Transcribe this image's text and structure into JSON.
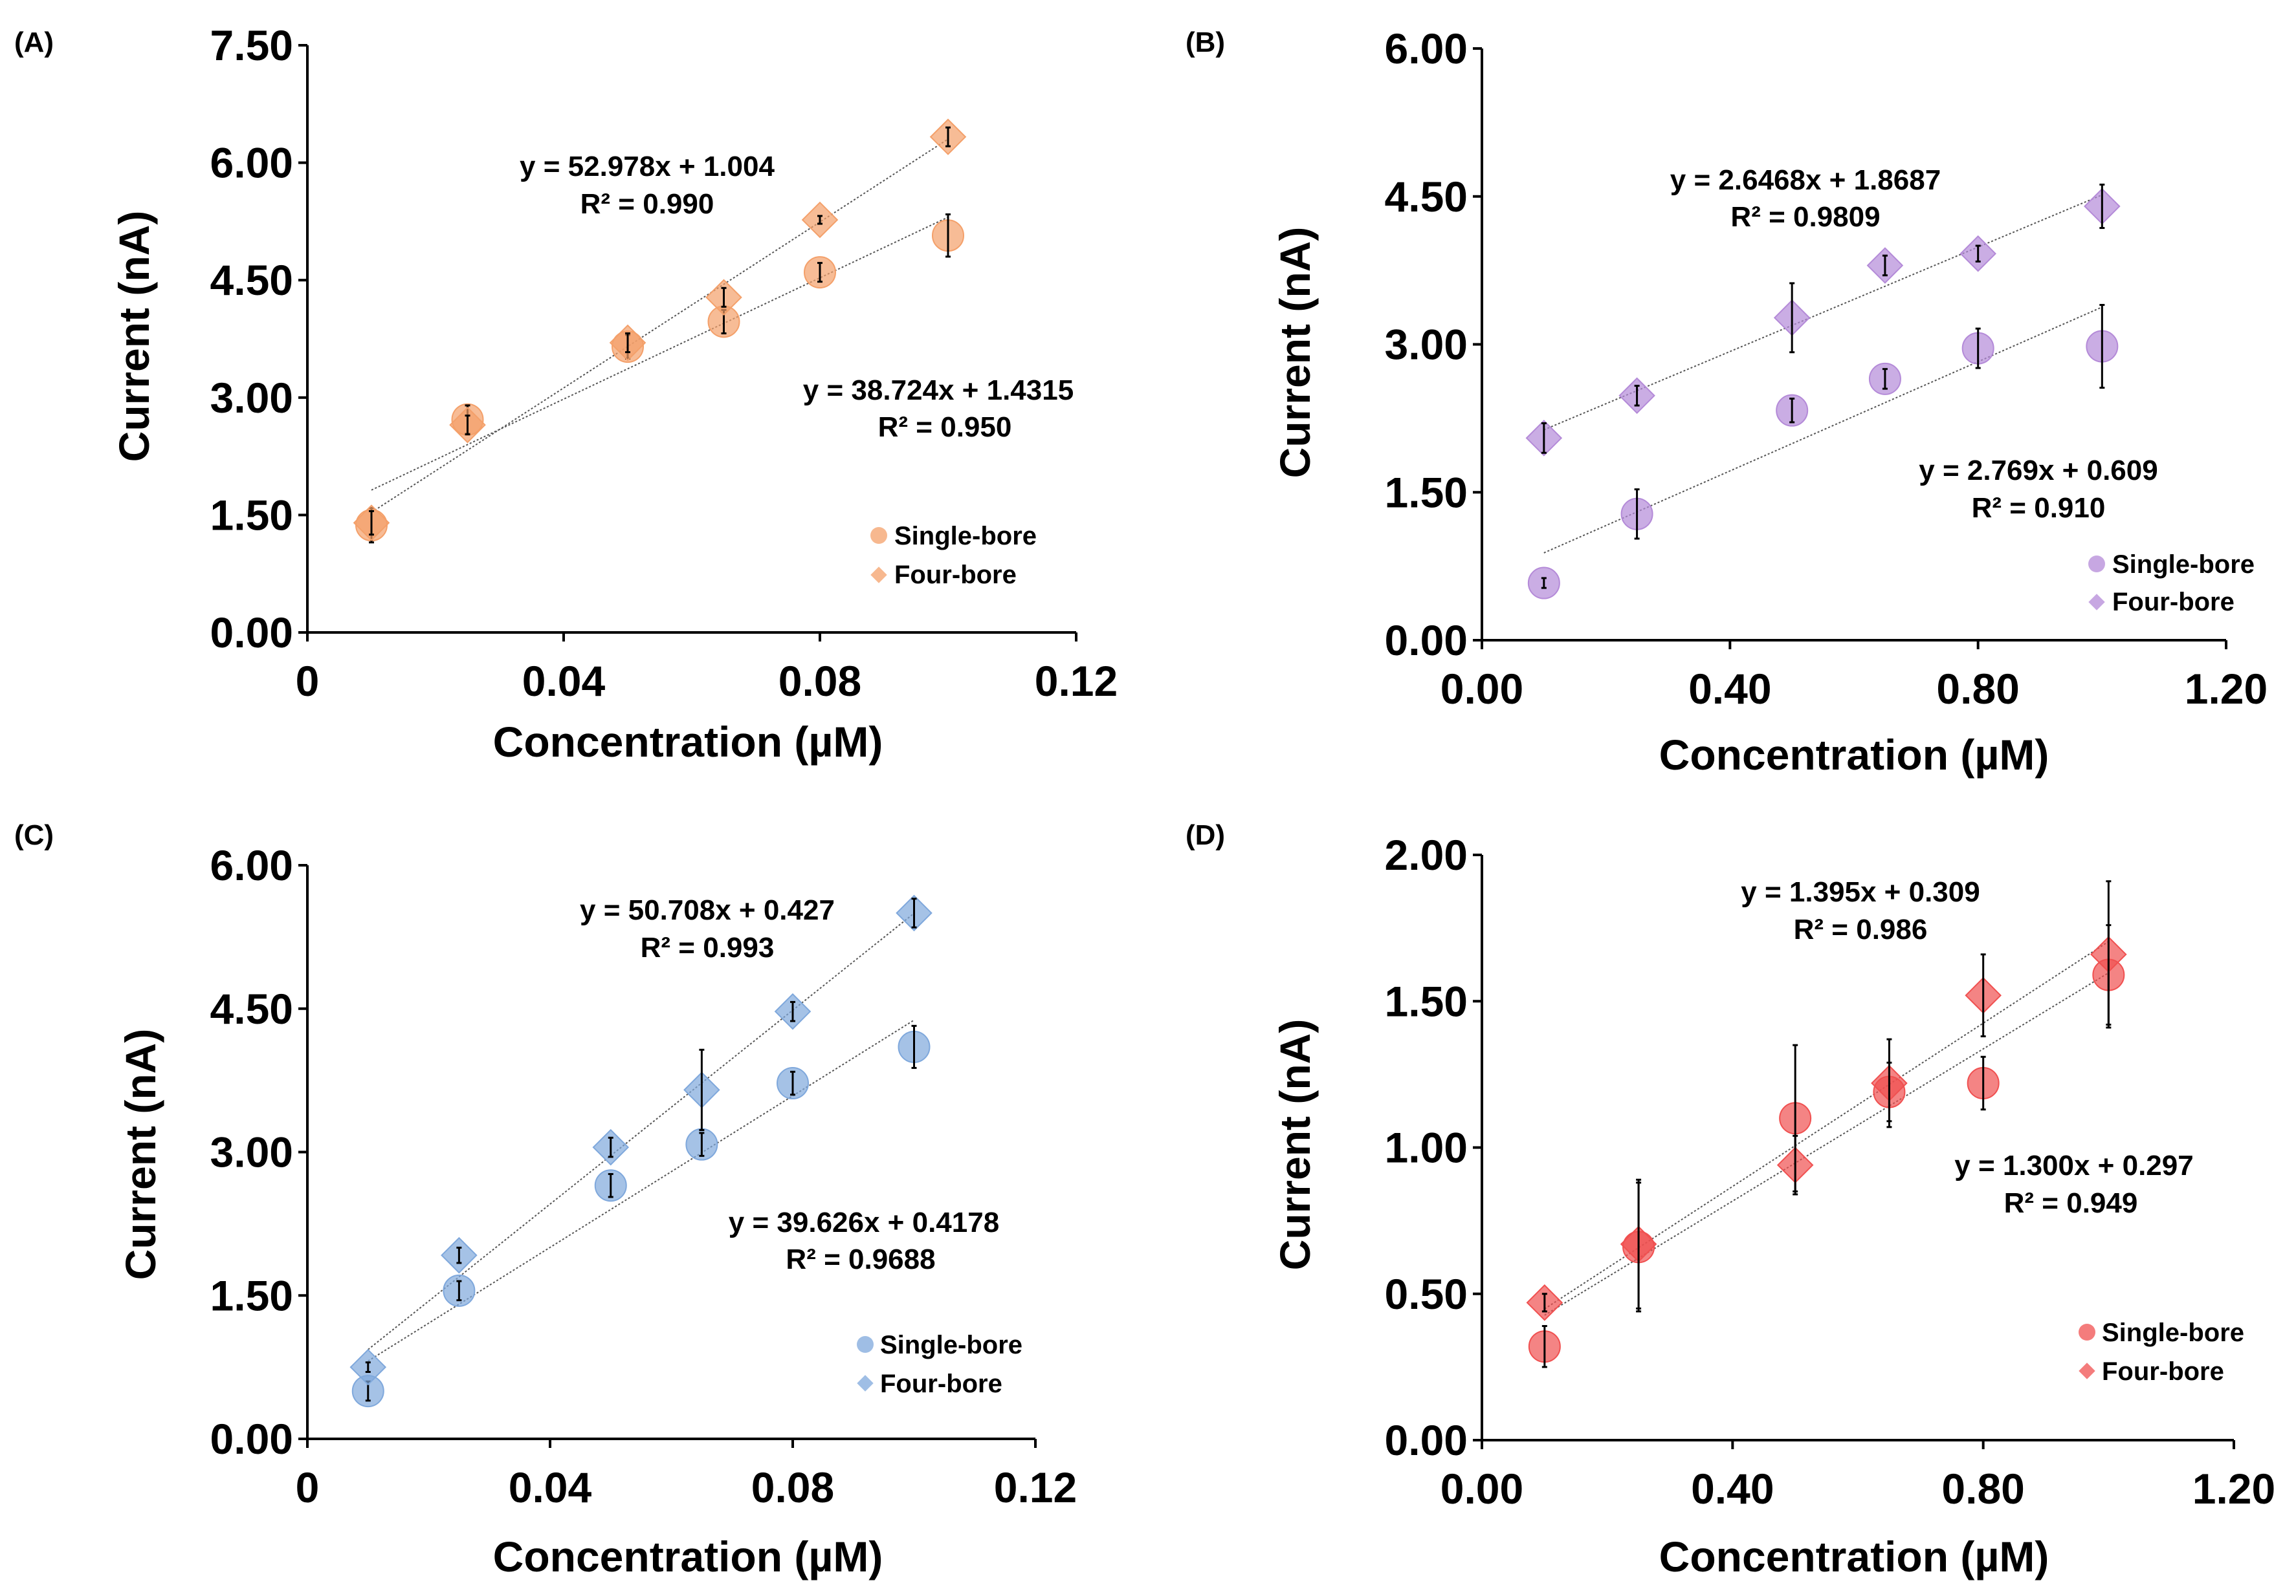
{
  "chart_data": [
    {
      "type": "scatter",
      "panel_label": "(A)",
      "xlabel": "Concentration (µM)",
      "ylabel": "Current (nA)",
      "xlim": [
        0,
        0.12
      ],
      "ylim": [
        0,
        7.5
      ],
      "x_ticks": [
        "0",
        "0.04",
        "0.08",
        "0.12"
      ],
      "y_ticks": [
        "0.00",
        "1.50",
        "3.00",
        "4.50",
        "6.00",
        "7.50"
      ],
      "color": "#f4a06a",
      "legend": [
        "Single-bore",
        "Four-bore"
      ],
      "legend_position": "bottom-right",
      "series": [
        {
          "name": "Single-bore",
          "marker": "circle",
          "x": [
            0.01,
            0.025,
            0.05,
            0.065,
            0.08,
            0.1
          ],
          "y": [
            1.37,
            2.72,
            3.65,
            3.97,
            4.6,
            5.07
          ],
          "err": [
            0.22,
            0.18,
            0.15,
            0.15,
            0.12,
            0.27
          ],
          "fit": {
            "slope": 38.724,
            "intercept": 1.4315
          },
          "equation": "y = 38.724x + 1.4315",
          "r2": "R² = 0.950"
        },
        {
          "name": "Four-bore",
          "marker": "diamond",
          "x": [
            0.01,
            0.025,
            0.05,
            0.065,
            0.08,
            0.1
          ],
          "y": [
            1.4,
            2.65,
            3.7,
            4.28,
            5.27,
            6.33
          ],
          "err": [
            0.15,
            0.12,
            0.12,
            0.12,
            0.05,
            0.12
          ],
          "fit": {
            "slope": 52.978,
            "intercept": 1.004
          },
          "equation": "y = 52.978x + 1.004",
          "r2": "R² = 0.990"
        }
      ]
    },
    {
      "type": "scatter",
      "panel_label": "(B)",
      "xlabel": "Concentration (µM)",
      "ylabel": "Current (nA)",
      "xlim": [
        0,
        1.2
      ],
      "ylim": [
        0,
        6.0
      ],
      "x_ticks": [
        "0.00",
        "0.40",
        "0.80",
        "1.20"
      ],
      "y_ticks": [
        "0.00",
        "1.50",
        "3.00",
        "4.50",
        "6.00"
      ],
      "color": "#b48ad8",
      "legend": [
        "Single-bore",
        "Four-bore"
      ],
      "legend_position": "bottom-right",
      "series": [
        {
          "name": "Single-bore",
          "marker": "circle",
          "x": [
            0.1,
            0.25,
            0.5,
            0.65,
            0.8,
            1.0
          ],
          "y": [
            0.58,
            1.28,
            2.33,
            2.65,
            2.96,
            2.98
          ],
          "err": [
            0.05,
            0.25,
            0.12,
            0.1,
            0.2,
            0.42
          ],
          "fit": {
            "slope": 2.769,
            "intercept": 0.609
          },
          "equation": "y = 2.769x + 0.609",
          "r2": "R² = 0.910"
        },
        {
          "name": "Four-bore",
          "marker": "diamond",
          "x": [
            0.1,
            0.25,
            0.5,
            0.65,
            0.8,
            1.0
          ],
          "y": [
            2.05,
            2.48,
            3.27,
            3.8,
            3.92,
            4.4
          ],
          "err": [
            0.15,
            0.1,
            0.35,
            0.1,
            0.08,
            0.22
          ],
          "fit": {
            "slope": 2.6468,
            "intercept": 1.8687
          },
          "equation": "y = 2.6468x + 1.8687",
          "r2": "R² = 0.9809"
        }
      ]
    },
    {
      "type": "scatter",
      "panel_label": "(C)",
      "xlabel": "Concentration (µM)",
      "ylabel": "Current (nA)",
      "xlim": [
        0,
        0.12
      ],
      "ylim": [
        0,
        6.0
      ],
      "x_ticks": [
        "0",
        "0.04",
        "0.08",
        "0.12"
      ],
      "y_ticks": [
        "0.00",
        "1.50",
        "3.00",
        "4.50",
        "6.00"
      ],
      "color": "#7fa8dc",
      "legend": [
        "Single-bore",
        "Four-bore"
      ],
      "legend_position": "bottom-right",
      "series": [
        {
          "name": "Single-bore",
          "marker": "circle",
          "x": [
            0.01,
            0.025,
            0.05,
            0.065,
            0.08,
            0.1
          ],
          "y": [
            0.5,
            1.55,
            2.65,
            3.08,
            3.72,
            4.1
          ],
          "err": [
            0.1,
            0.1,
            0.12,
            0.12,
            0.12,
            0.22
          ],
          "fit": {
            "slope": 39.626,
            "intercept": 0.4178
          },
          "equation": "y = 39.626x + 0.4178",
          "r2": "R² = 0.9688"
        },
        {
          "name": "Four-bore",
          "marker": "diamond",
          "x": [
            0.01,
            0.025,
            0.05,
            0.065,
            0.08,
            0.1
          ],
          "y": [
            0.75,
            1.92,
            3.05,
            3.65,
            4.47,
            5.5
          ],
          "err": [
            0.05,
            0.08,
            0.1,
            0.42,
            0.1,
            0.15
          ],
          "fit": {
            "slope": 50.708,
            "intercept": 0.427
          },
          "equation": "y = 50.708x + 0.427",
          "r2": "R² = 0.993"
        }
      ]
    },
    {
      "type": "scatter",
      "panel_label": "(D)",
      "xlabel": "Concentration (µM)",
      "ylabel": "Current (nA)",
      "xlim": [
        0,
        1.2
      ],
      "ylim": [
        0,
        2.0
      ],
      "x_ticks": [
        "0.00",
        "0.40",
        "0.80",
        "1.20"
      ],
      "y_ticks": [
        "0.00",
        "0.50",
        "1.00",
        "1.50",
        "2.00"
      ],
      "color": "#f05050",
      "legend": [
        "Single-bore",
        "Four-bore"
      ],
      "legend_position": "bottom-right",
      "series": [
        {
          "name": "Single-bore",
          "marker": "circle",
          "x": [
            0.1,
            0.25,
            0.5,
            0.65,
            0.8,
            1.0
          ],
          "y": [
            0.32,
            0.66,
            1.1,
            1.19,
            1.22,
            1.59
          ],
          "err": [
            0.07,
            0.22,
            0.25,
            0.1,
            0.09,
            0.17
          ],
          "fit": {
            "slope": 1.3,
            "intercept": 0.297
          },
          "equation": "y = 1.300x + 0.297",
          "r2": "R² = 0.949"
        },
        {
          "name": "Four-bore",
          "marker": "diamond",
          "x": [
            0.1,
            0.25,
            0.5,
            0.65,
            0.8,
            1.0
          ],
          "y": [
            0.47,
            0.67,
            0.94,
            1.22,
            1.52,
            1.66
          ],
          "err": [
            0.03,
            0.22,
            0.1,
            0.15,
            0.14,
            0.25
          ],
          "fit": {
            "slope": 1.395,
            "intercept": 0.309
          },
          "equation": "y = 1.395x + 0.309",
          "r2": "R² = 0.986"
        }
      ]
    }
  ]
}
